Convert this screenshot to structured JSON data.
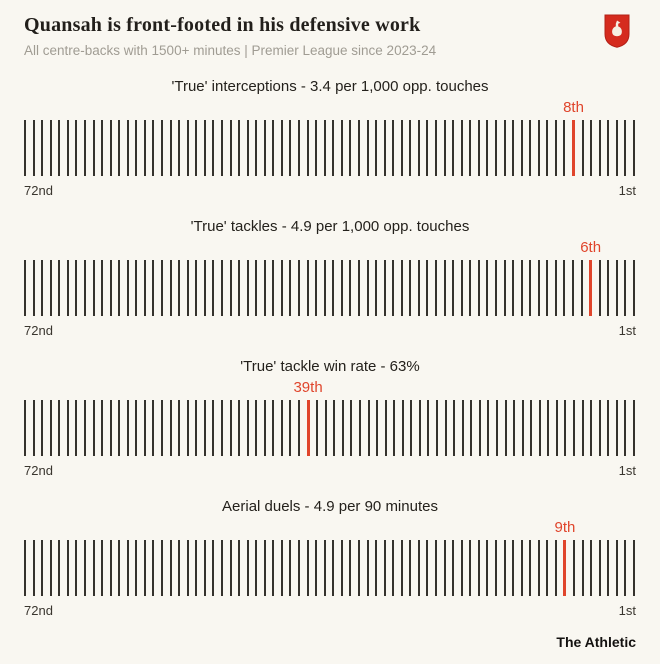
{
  "header": {
    "title": "Quansah is front-footed in his defensive work",
    "subtitle": "All centre-backs with 1500+ minutes | Premier League since 2023-24"
  },
  "branding": {
    "footer_wordmark": "The Athletic",
    "crest_icon": "liverpool-crest-icon"
  },
  "colors": {
    "background": "#f9f7f1",
    "accent_red": "#e0452c",
    "tick": "#35322d",
    "subtitle_gray": "#a09c93",
    "crest_red": "#d52b1e"
  },
  "chart_data": [
    {
      "type": "strip-rank",
      "title": "'True' interceptions - 3.4 per 1,000 opp. touches",
      "total_ranks": 72,
      "highlight_rank": 8,
      "highlight_label": "8th",
      "x_left_label": "72nd",
      "x_right_label": "1st"
    },
    {
      "type": "strip-rank",
      "title": "'True' tackles - 4.9 per 1,000 opp. touches",
      "total_ranks": 72,
      "highlight_rank": 6,
      "highlight_label": "6th",
      "x_left_label": "72nd",
      "x_right_label": "1st"
    },
    {
      "type": "strip-rank",
      "title": "'True' tackle win rate - 63%",
      "total_ranks": 72,
      "highlight_rank": 39,
      "highlight_label": "39th",
      "x_left_label": "72nd",
      "x_right_label": "1st"
    },
    {
      "type": "strip-rank",
      "title": "Aerial duels - 4.9 per 90 minutes",
      "total_ranks": 72,
      "highlight_rank": 9,
      "highlight_label": "9th",
      "x_left_label": "72nd",
      "x_right_label": "1st"
    }
  ]
}
